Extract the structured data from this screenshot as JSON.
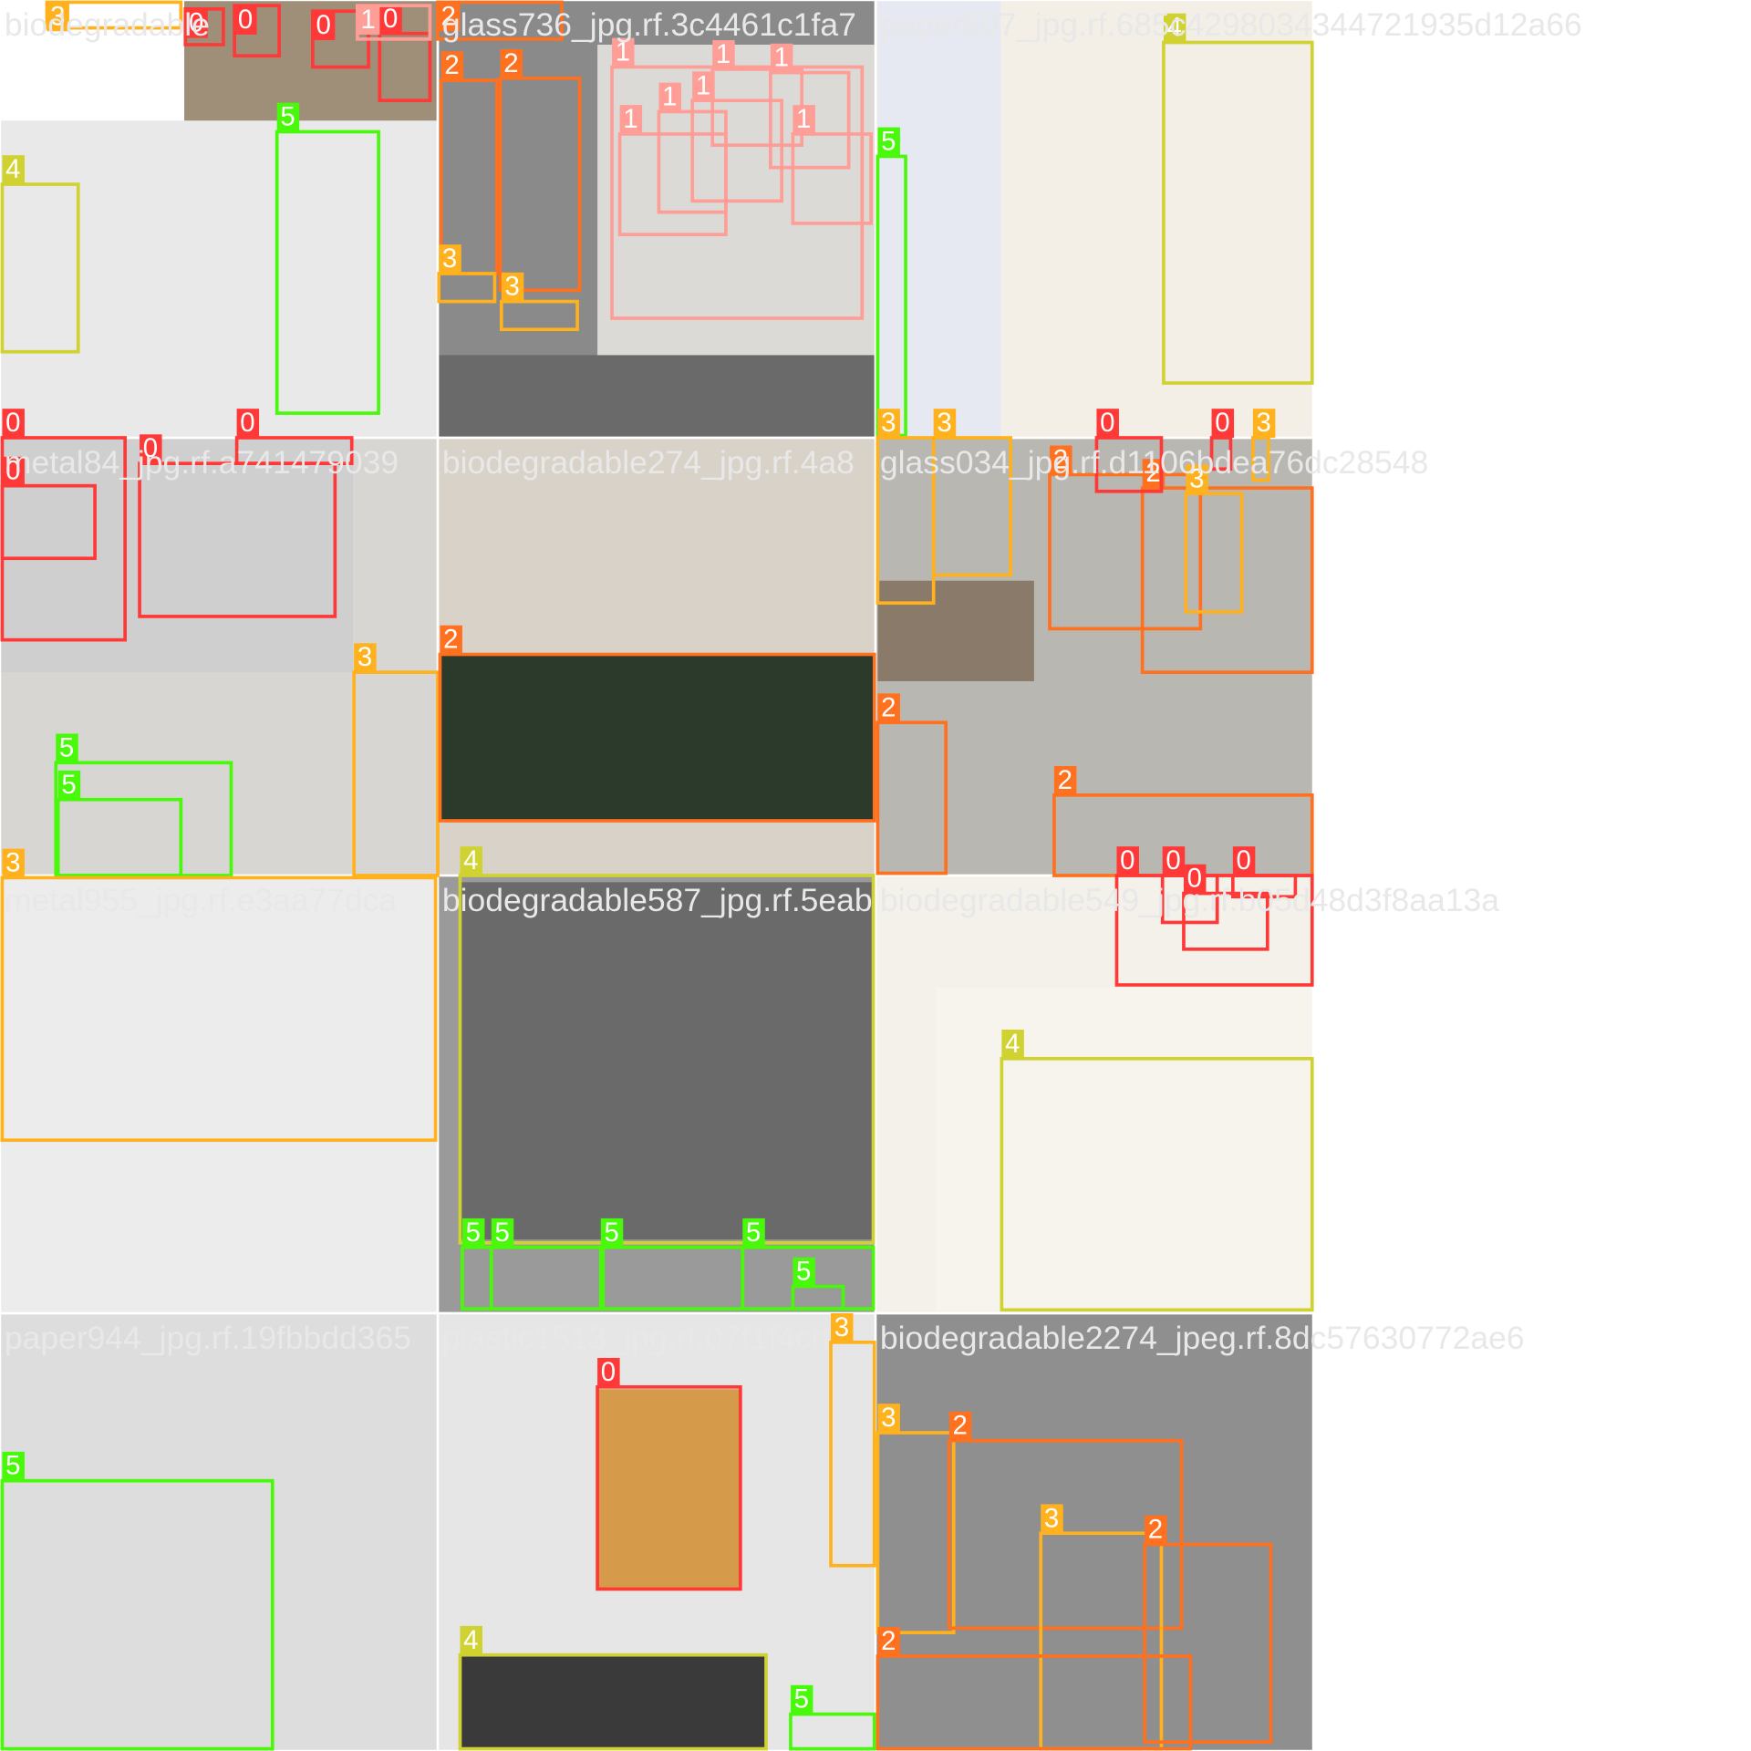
{
  "tiles": [
    {
      "filename": "biodegradable"
    },
    {
      "filename": "glass736_jpg.rf.3c4461c1fa7"
    },
    {
      "filename": "paper607_jpg.rf.685c4298034344721935d12a66"
    },
    {
      "filename": "metal84_jpg.rf.a741479039"
    },
    {
      "filename": "biodegradable274_jpg.rf.4a8"
    },
    {
      "filename": "glass034_jpg.rf.d1106bdea76dc28548"
    },
    {
      "filename": "metal955_jpg.rf.e3aa77dca"
    },
    {
      "filename": "biodegradable587_jpg.rf.5eab"
    },
    {
      "filename": "biodegradable549_jpg.rf.b05d48d3f8aa13a"
    },
    {
      "filename": "paper944_jpg.rf.19fbbdd365"
    },
    {
      "filename": "plastic1513_jpg.rf.07f1f4cd"
    },
    {
      "filename": "biodegradable2274_jpeg.rf.8dc57630772ae6"
    }
  ],
  "class_colors": {
    "0": "#ff3838",
    "1": "#ff9d97",
    "2": "#ff701f",
    "3": "#ffb21d",
    "4": "#cfd231",
    "5": "#48f90a"
  },
  "boxes": [
    {
      "label": "3"
    },
    {
      "label": "0"
    },
    {
      "label": "0"
    },
    {
      "label": "0"
    },
    {
      "label": "0"
    },
    {
      "label": "1"
    },
    {
      "label": "5"
    },
    {
      "label": "4"
    },
    {
      "label": "2"
    },
    {
      "label": "2"
    },
    {
      "label": "2"
    },
    {
      "label": "3"
    },
    {
      "label": "3"
    },
    {
      "label": "1"
    },
    {
      "label": "1"
    },
    {
      "label": "1"
    },
    {
      "label": "1"
    },
    {
      "label": "1"
    },
    {
      "label": "1"
    },
    {
      "label": "1"
    },
    {
      "label": "5"
    },
    {
      "label": "4"
    },
    {
      "label": "0"
    },
    {
      "label": "0"
    },
    {
      "label": "0"
    },
    {
      "label": "0"
    },
    {
      "label": "3"
    },
    {
      "label": "5"
    },
    {
      "label": "5"
    },
    {
      "label": "2"
    },
    {
      "label": "3"
    },
    {
      "label": "3"
    },
    {
      "label": "2"
    },
    {
      "label": "2"
    },
    {
      "label": "3"
    },
    {
      "label": "0"
    },
    {
      "label": "0"
    },
    {
      "label": "3"
    },
    {
      "label": "2"
    },
    {
      "label": "2"
    },
    {
      "label": "3"
    },
    {
      "label": "4"
    },
    {
      "label": "5"
    },
    {
      "label": "5"
    },
    {
      "label": "5"
    },
    {
      "label": "5"
    },
    {
      "label": "5"
    },
    {
      "label": "0"
    },
    {
      "label": "0"
    },
    {
      "label": "0"
    },
    {
      "label": "0"
    },
    {
      "label": "4"
    },
    {
      "label": "5"
    },
    {
      "label": "0"
    },
    {
      "label": "3"
    },
    {
      "label": "4"
    },
    {
      "label": "5"
    },
    {
      "label": "3"
    },
    {
      "label": "2"
    },
    {
      "label": "3"
    },
    {
      "label": "2"
    },
    {
      "label": "2"
    }
  ]
}
